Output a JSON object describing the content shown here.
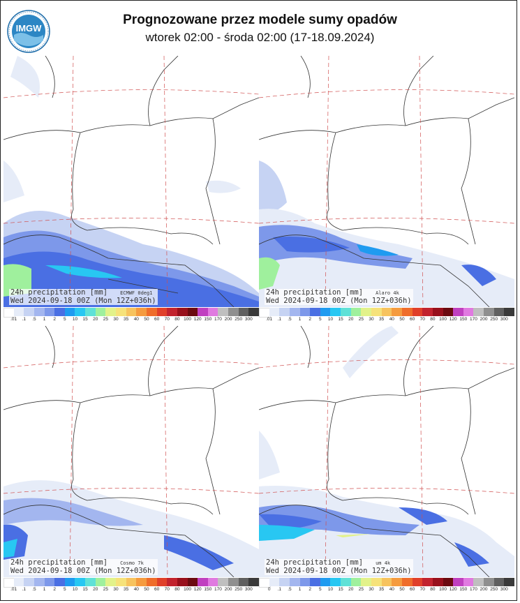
{
  "header": {
    "title": "Prognozowane przez modele sumy opadów",
    "subtitle": "wtorek 02:00 - środa 02:00 (17-18.09.2024)",
    "logo_text": "IMGW"
  },
  "colorbar": {
    "labels_a": [
      ".01",
      ".1",
      ".5",
      "1",
      "2",
      "5",
      "10",
      "15",
      "20",
      "25",
      "30",
      "35",
      "40",
      "50",
      "60",
      "70",
      "80",
      "100",
      "120",
      "150",
      "170",
      "200",
      "250",
      "300"
    ],
    "labels_b": [
      "0",
      ".1",
      ".5",
      "1",
      "2",
      "5",
      "10",
      "15",
      "20",
      "25",
      "30",
      "35",
      "40",
      "50",
      "60",
      "70",
      "80",
      "100",
      "120",
      "150",
      "170",
      "200",
      "250",
      "300"
    ],
    "colors": [
      "#ffffff",
      "#e6ecf8",
      "#c6d3f3",
      "#a3b6ef",
      "#7d98ea",
      "#4a6fe3",
      "#1f9bf0",
      "#28c7f2",
      "#5fe1d7",
      "#9ff09d",
      "#e2f28a",
      "#f6e27a",
      "#f7c35e",
      "#f59b3f",
      "#ef6d2b",
      "#e0402a",
      "#c2232e",
      "#98101c",
      "#6b0a10",
      "#c040c0",
      "#e07ae0",
      "#bfbfbf",
      "#8f8f8f",
      "#606060",
      "#3a3a3a"
    ]
  },
  "panels": [
    {
      "id": "ecmwf",
      "line1": "24h precipitation  [mm]",
      "model": "ECMWF 0deg1",
      "line2": "Wed 2024-09-18 00Z (Mon 12Z+036h)",
      "ticks": "a"
    },
    {
      "id": "alaro",
      "line1": "24h precipitation  [mm]",
      "model": "Alaro 4k",
      "line2": "Wed 2024-09-18 00Z (Mon 12Z+036h)",
      "ticks": "a"
    },
    {
      "id": "cosmo",
      "line1": "24h precipitation  [mm]",
      "model": "Cosmo 7k",
      "line2": "Wed 2024-09-18 00Z (Mon 12Z+036h)",
      "ticks": "a"
    },
    {
      "id": "um",
      "line1": "24h precipitation  [mm]",
      "model": "um 4k",
      "line2": "Wed 2024-09-18 00Z (Mon 12Z+036h)",
      "ticks": "b"
    }
  ]
}
